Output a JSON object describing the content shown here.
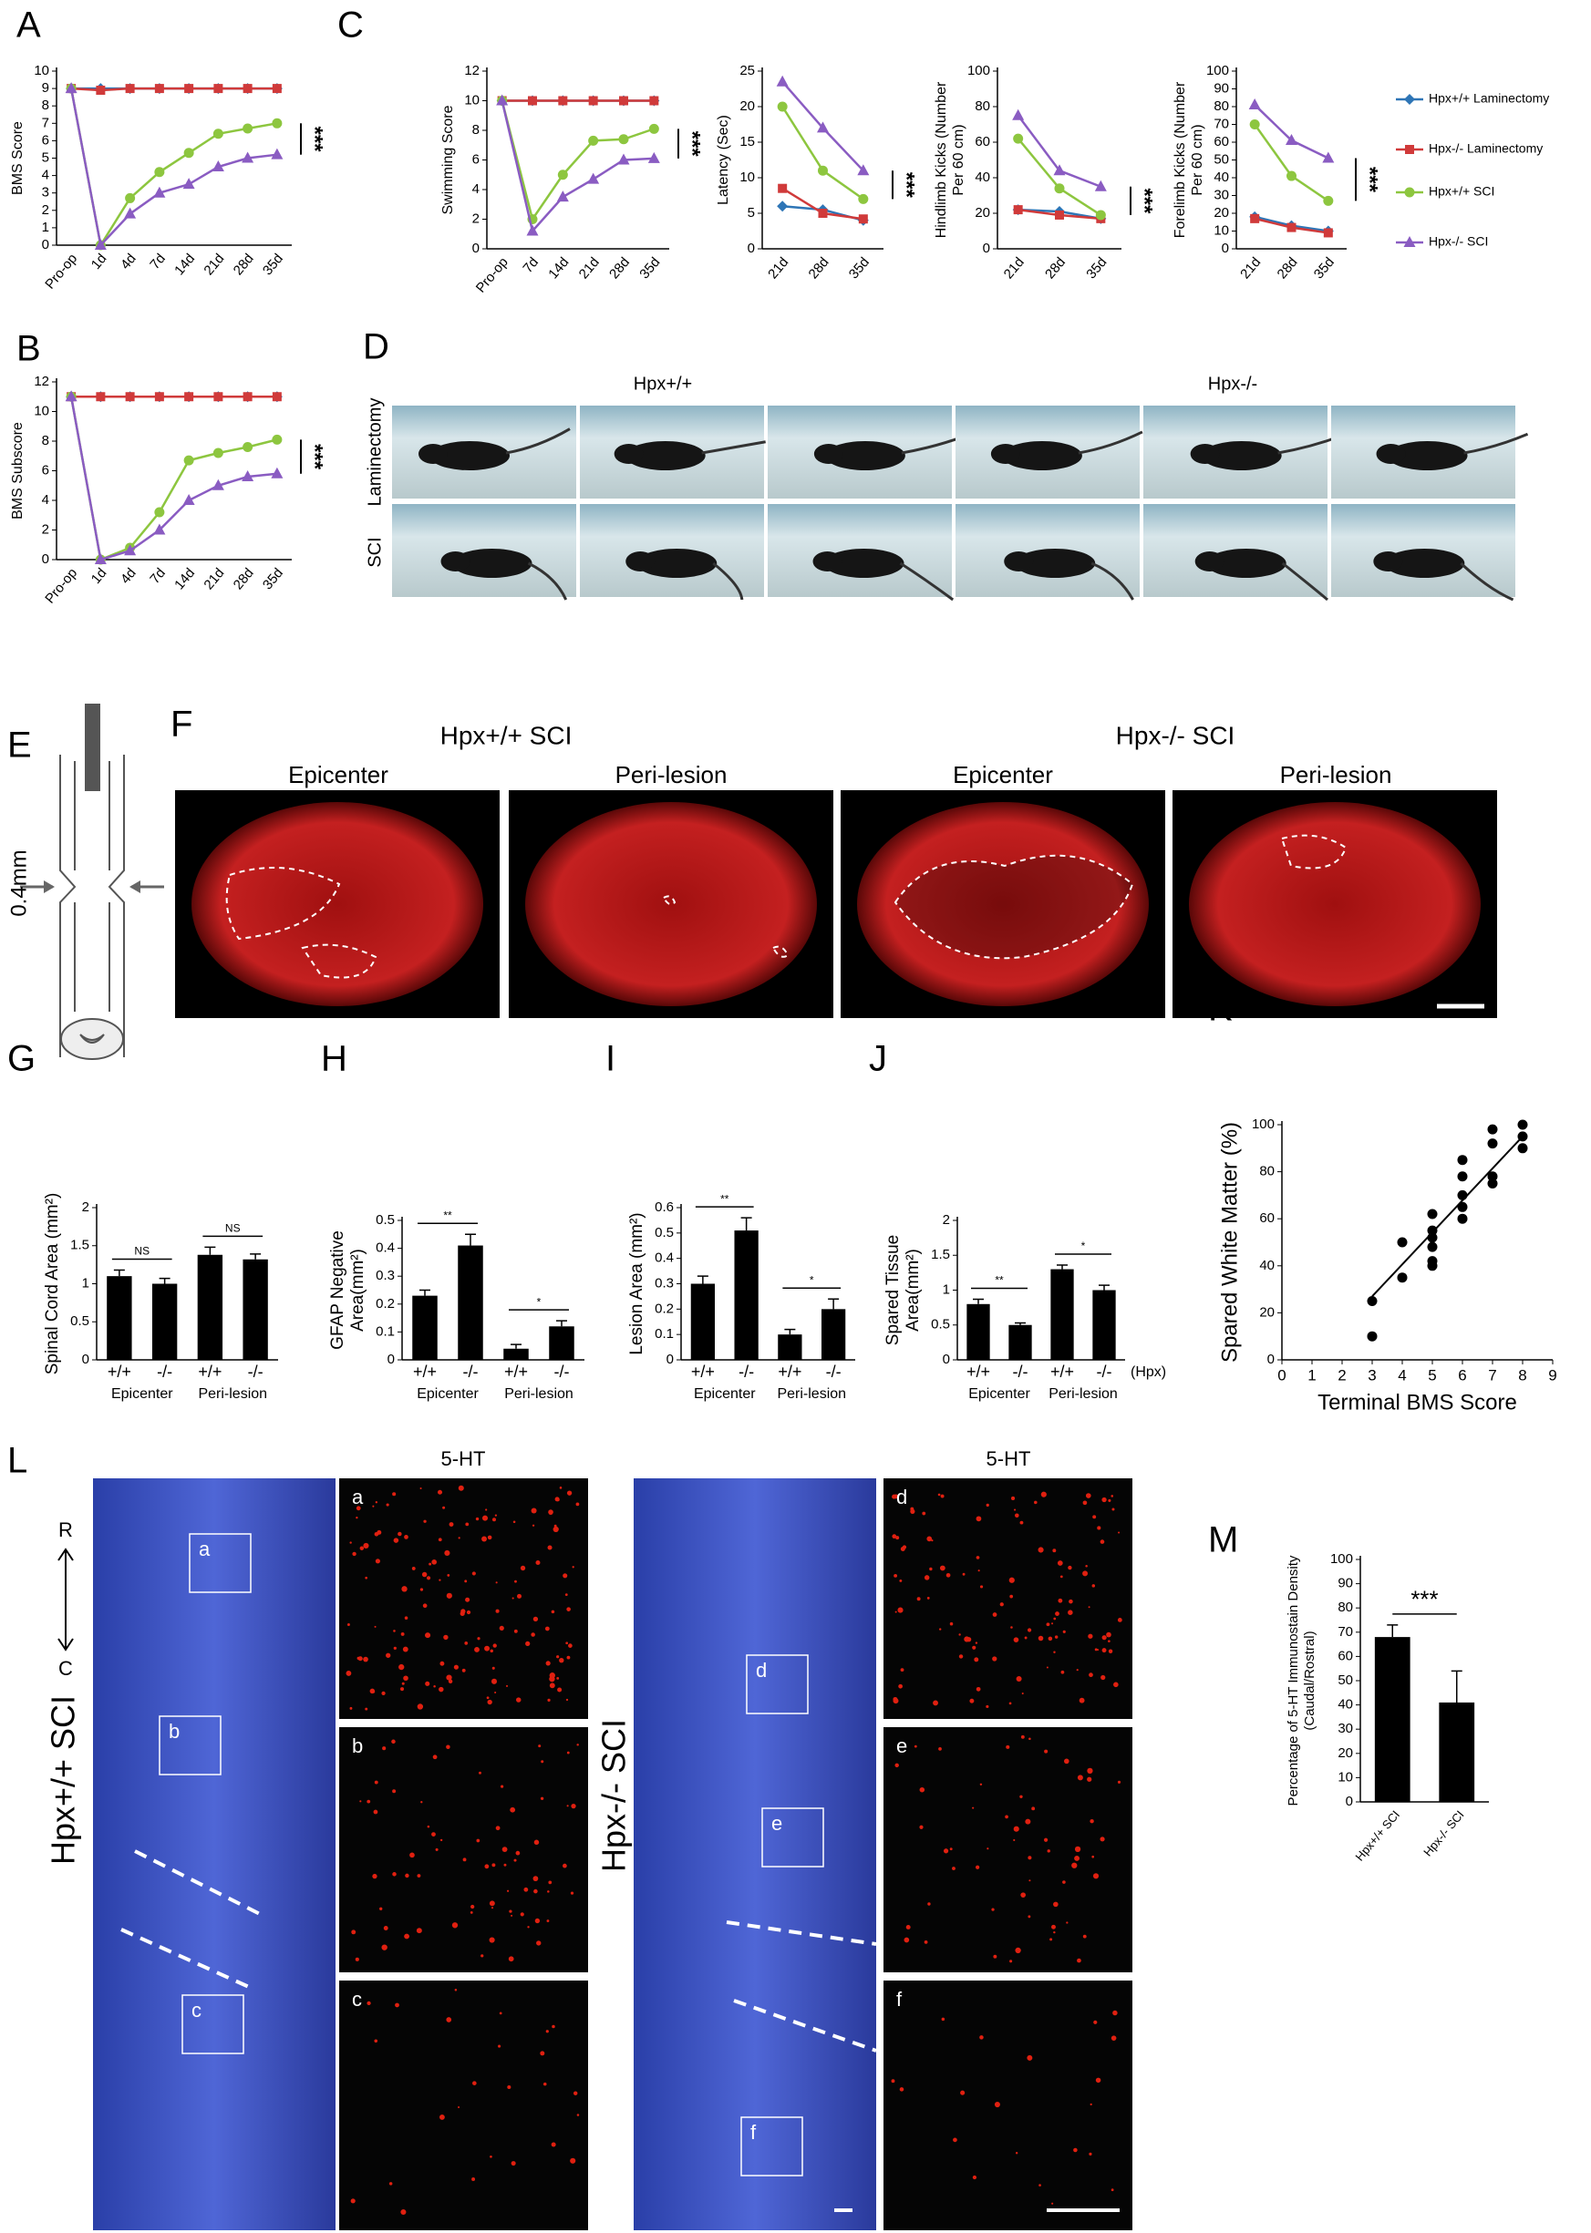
{
  "panel_letters": [
    "A",
    "B",
    "C",
    "D",
    "E",
    "F",
    "G",
    "H",
    "I",
    "J",
    "K",
    "L",
    "M"
  ],
  "panel_D": {
    "columns": [
      "Hpx+/+",
      "Hpx-/-"
    ],
    "rows": [
      "Laminectomy",
      "SCI"
    ]
  },
  "panel_E": {
    "label": "0.4mm"
  },
  "panel_F": {
    "titles": [
      "Hpx+/+ SCI",
      "Hpx-/- SCI"
    ],
    "subtitles": [
      "Epicenter",
      "Peri-lesion",
      "Epicenter",
      "Peri-lesion"
    ]
  },
  "panel_L": {
    "stain_labels": [
      "5-HT",
      "5-HT"
    ],
    "direction": [
      "R",
      "C"
    ],
    "sections": [
      "Hpx+/+ SCI",
      "Hpx-/- SCI"
    ],
    "regions": [
      "a",
      "b",
      "c",
      "d",
      "e",
      "f"
    ]
  },
  "chart_data": [
    {
      "type": "line",
      "ylabel": "BMS Score",
      "categories": [
        "Pro-op",
        "1d",
        "4d",
        "7d",
        "14d",
        "21d",
        "28d",
        "35d"
      ],
      "ylim": [
        0,
        10
      ],
      "yticks": [
        0,
        1,
        2,
        3,
        4,
        5,
        6,
        7,
        8,
        9,
        10
      ],
      "annotation": "***",
      "series": [
        {
          "color": "#2e75b6",
          "marker": "diamond",
          "values": [
            9,
            9,
            9,
            9,
            9,
            9,
            9,
            9
          ]
        },
        {
          "color": "#d03a3a",
          "marker": "square",
          "values": [
            9,
            8.9,
            9,
            9,
            9,
            9,
            9,
            9
          ]
        },
        {
          "color": "#8dc63f",
          "marker": "circle",
          "values": [
            9,
            0,
            2.7,
            4.2,
            5.3,
            6.4,
            6.7,
            7.0
          ]
        },
        {
          "color": "#8a5cc2",
          "marker": "triangle",
          "values": [
            9,
            0,
            1.8,
            3,
            3.5,
            4.5,
            5,
            5.2
          ]
        }
      ]
    },
    {
      "type": "line",
      "ylabel": "BMS Subscore",
      "categories": [
        "Pro-op",
        "1d",
        "4d",
        "7d",
        "14d",
        "21d",
        "28d",
        "35d"
      ],
      "ylim": [
        0,
        12
      ],
      "yticks": [
        0,
        2,
        4,
        6,
        8,
        10,
        12
      ],
      "annotation": "***",
      "series": [
        {
          "color": "#2e75b6",
          "marker": "diamond",
          "values": [
            11,
            11,
            11,
            11,
            11,
            11,
            11,
            11
          ]
        },
        {
          "color": "#d03a3a",
          "marker": "square",
          "values": [
            11,
            11,
            11,
            11,
            11,
            11,
            11,
            11
          ]
        },
        {
          "color": "#8dc63f",
          "marker": "circle",
          "values": [
            11,
            0,
            0.8,
            3.2,
            6.7,
            7.2,
            7.6,
            8.1
          ]
        },
        {
          "color": "#8a5cc2",
          "marker": "triangle",
          "values": [
            11,
            0,
            0.6,
            2,
            4,
            5,
            5.6,
            5.8
          ]
        }
      ]
    },
    {
      "type": "line",
      "ylabel": "Swimming Score",
      "categories": [
        "Pro-op",
        "7d",
        "14d",
        "21d",
        "28d",
        "35d"
      ],
      "ylim": [
        0,
        12
      ],
      "yticks": [
        0,
        2,
        4,
        6,
        8,
        10,
        12
      ],
      "annotation": "***",
      "series": [
        {
          "color": "#2e75b6",
          "marker": "diamond",
          "values": [
            10,
            10,
            10,
            10,
            10,
            10
          ]
        },
        {
          "color": "#d03a3a",
          "marker": "square",
          "values": [
            10,
            10,
            10,
            10,
            10,
            10
          ]
        },
        {
          "color": "#8dc63f",
          "marker": "circle",
          "values": [
            10,
            2,
            5,
            7.3,
            7.4,
            8.1
          ]
        },
        {
          "color": "#8a5cc2",
          "marker": "triangle",
          "values": [
            10,
            1.2,
            3.5,
            4.7,
            6,
            6.1
          ]
        }
      ]
    },
    {
      "type": "line",
      "ylabel": "Latency (Sec)",
      "categories": [
        "21d",
        "28d",
        "35d"
      ],
      "ylim": [
        0,
        25
      ],
      "yticks": [
        0,
        5,
        10,
        15,
        20,
        25
      ],
      "annotation": "***",
      "series": [
        {
          "color": "#2e75b6",
          "marker": "diamond",
          "values": [
            6,
            5.5,
            4
          ]
        },
        {
          "color": "#d03a3a",
          "marker": "square",
          "values": [
            8.5,
            5,
            4.2
          ]
        },
        {
          "color": "#8dc63f",
          "marker": "circle",
          "values": [
            20,
            11,
            7
          ]
        },
        {
          "color": "#8a5cc2",
          "marker": "triangle",
          "values": [
            23.5,
            17,
            11
          ]
        }
      ]
    },
    {
      "type": "line",
      "ylabel": [
        "Hindlimb Kicks (Number",
        "Per 60 cm)"
      ],
      "categories": [
        "21d",
        "28d",
        "35d"
      ],
      "ylim": [
        0,
        100
      ],
      "yticks": [
        0,
        20,
        40,
        60,
        80,
        100
      ],
      "annotation": "***",
      "series": [
        {
          "color": "#2e75b6",
          "marker": "diamond",
          "values": [
            22,
            21,
            17
          ]
        },
        {
          "color": "#d03a3a",
          "marker": "square",
          "values": [
            22,
            19,
            17
          ]
        },
        {
          "color": "#8dc63f",
          "marker": "circle",
          "values": [
            62,
            34,
            19
          ]
        },
        {
          "color": "#8a5cc2",
          "marker": "triangle",
          "values": [
            75,
            44,
            35
          ]
        }
      ]
    },
    {
      "type": "line",
      "ylabel": [
        "Forelimb Kicks (Number",
        "Per 60 cm)"
      ],
      "categories": [
        "21d",
        "28d",
        "35d"
      ],
      "ylim": [
        0,
        100
      ],
      "yticks": [
        0,
        10,
        20,
        30,
        40,
        50,
        60,
        70,
        80,
        90,
        100
      ],
      "annotation": "***",
      "legend": "right",
      "series": [
        {
          "name": "Hpx+/+ Laminectomy",
          "color": "#2e75b6",
          "marker": "diamond",
          "values": [
            18,
            13,
            10
          ]
        },
        {
          "name": "Hpx-/- Laminectomy",
          "color": "#d03a3a",
          "marker": "square",
          "values": [
            17,
            12,
            9
          ]
        },
        {
          "name": "Hpx+/+ SCI",
          "color": "#8dc63f",
          "marker": "circle",
          "values": [
            70,
            41,
            27
          ]
        },
        {
          "name": "Hpx-/- SCI",
          "color": "#8a5cc2",
          "marker": "triangle",
          "values": [
            81,
            61,
            51
          ]
        }
      ]
    },
    {
      "type": "bar",
      "ylabel": "Spinal Cord Area (mm²)",
      "categories": [
        "+/+",
        "-/-",
        "+/+",
        "-/-"
      ],
      "groups": [
        "Epicenter",
        "Peri-lesion"
      ],
      "values": [
        1.1,
        1.0,
        1.38,
        1.32
      ],
      "errors": [
        0.08,
        0.07,
        0.1,
        0.07
      ],
      "sig": [
        "NS",
        "NS"
      ],
      "color": "#000000",
      "ylim": [
        0,
        2
      ],
      "yticks": [
        0,
        0.5,
        1,
        1.5,
        2
      ]
    },
    {
      "type": "bar",
      "ylabel": [
        "GFAP Negative",
        "Area(mm²)"
      ],
      "categories": [
        "+/+",
        "-/-",
        "+/+",
        "-/-"
      ],
      "groups": [
        "Epicenter",
        "Peri-lesion"
      ],
      "values": [
        0.23,
        0.41,
        0.04,
        0.12
      ],
      "errors": [
        0.02,
        0.04,
        0.015,
        0.02
      ],
      "sig": [
        "**",
        "*"
      ],
      "color": "#000000",
      "ylim": [
        0,
        0.5
      ],
      "yticks": [
        0,
        0.1,
        0.2,
        0.3,
        0.4,
        0.5
      ]
    },
    {
      "type": "bar",
      "ylabel": "Lesion Area (mm²)",
      "categories": [
        "+/+",
        "-/-",
        "+/+",
        "-/-"
      ],
      "groups": [
        "Epicenter",
        "Peri-lesion"
      ],
      "values": [
        0.3,
        0.51,
        0.1,
        0.2
      ],
      "errors": [
        0.03,
        0.05,
        0.02,
        0.04
      ],
      "sig": [
        "**",
        "*"
      ],
      "color": "#000000",
      "ylim": [
        0,
        0.6
      ],
      "yticks": [
        0,
        0.1,
        0.2,
        0.3,
        0.4,
        0.5,
        0.6
      ]
    },
    {
      "type": "bar",
      "ylabel": [
        "Spared Tissue",
        "Area(mm²)"
      ],
      "categories": [
        "+/+",
        "-/-",
        "+/+",
        "-/-"
      ],
      "groups": [
        "Epicenter",
        "Peri-lesion"
      ],
      "xtick_note": "(Hpx)",
      "values": [
        0.8,
        0.5,
        1.3,
        1.0
      ],
      "errors": [
        0.07,
        0.03,
        0.06,
        0.07
      ],
      "sig": [
        "**",
        "*"
      ],
      "color": "#000000",
      "ylim": [
        0,
        2
      ],
      "yticks": [
        0,
        0.5,
        1,
        1.5,
        2
      ]
    },
    {
      "type": "scatter",
      "xlabel": "Terminal BMS Score",
      "ylabel": "Spared White Matter (%)",
      "color": "#000000",
      "x": [
        3,
        3,
        4,
        4,
        5,
        5,
        5,
        5,
        5,
        5,
        6,
        6,
        6,
        6,
        6,
        7,
        7,
        7,
        7,
        8,
        8,
        8
      ],
      "y": [
        25,
        10,
        50,
        35,
        62,
        55,
        52,
        48,
        42,
        40,
        85,
        78,
        70,
        65,
        60,
        98,
        92,
        78,
        75,
        100,
        95,
        90
      ],
      "fit_line": {
        "x": [
          3,
          8
        ],
        "y": [
          27,
          95
        ]
      },
      "xlim": [
        0,
        9
      ],
      "xticks": [
        0,
        1,
        2,
        3,
        4,
        5,
        6,
        7,
        8,
        9
      ],
      "ylim": [
        0,
        100
      ],
      "yticks": [
        0,
        20,
        40,
        60,
        80,
        100
      ]
    },
    {
      "type": "bar",
      "ylabel": [
        "Percentage of 5-HT Immunostain Density",
        "(Caudal/Rostral)"
      ],
      "categories": [
        "Hpx+/+ SCI",
        "Hpx-/- SCI"
      ],
      "values": [
        68,
        41
      ],
      "errors": [
        5,
        13
      ],
      "sig": [
        "***"
      ],
      "color": "#000000",
      "ylim": [
        0,
        100
      ],
      "yticks": [
        0,
        10,
        20,
        30,
        40,
        50,
        60,
        70,
        80,
        90,
        100
      ]
    }
  ]
}
